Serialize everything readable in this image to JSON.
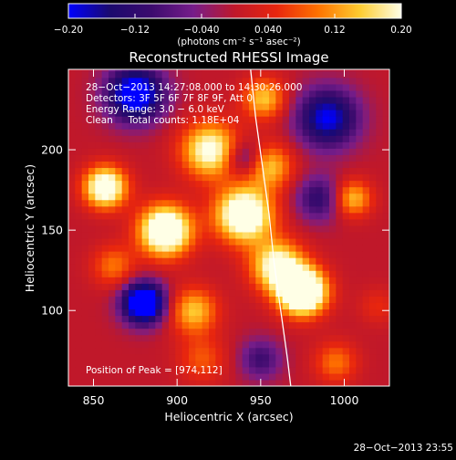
{
  "chart_data": {
    "type": "heatmap",
    "title": "Reconstructed RHESSI Image",
    "xlabel": "Heliocentric X (arcsec)",
    "ylabel": "Heliocentric Y (arcsec)",
    "xlim": [
      835,
      1027
    ],
    "ylim": [
      53,
      250
    ],
    "x_ticks": [
      850,
      900,
      950,
      1000
    ],
    "y_ticks": [
      100,
      150,
      200
    ],
    "colorbar": {
      "min": -0.2,
      "max": 0.2,
      "tick_values": [
        -0.2,
        -0.12,
        -0.04,
        0.04,
        0.12,
        0.2
      ],
      "tick_labels": [
        "−0.20",
        "−0.12",
        "−0.040",
        "0.040",
        "0.12",
        "0.20"
      ],
      "unit_label": "(photons cm⁻² s⁻¹ asec⁻²)",
      "stops": [
        "#0000ff",
        "#1b0a6e",
        "#3c0b6e",
        "#761d8a",
        "#c0182a",
        "#e8260e",
        "#ff7200",
        "#ffcc30",
        "#ffffe6"
      ]
    },
    "annotations": {
      "time_range": "28−Oct−2013 14:27:08.000 to 14:30:26.000",
      "detectors": "Detectors: 3F 5F 6F 7F 8F 9F, Att 0",
      "energy": "Energy Range: 3.0 − 6.0 keV",
      "clean": "Clean     Total counts: 1.18E+04",
      "peak": "Position of Peak = [974,112]"
    },
    "timestamp": "28−Oct−2013 23:55",
    "limb_curve": [
      [
        944,
        250
      ],
      [
        947,
        220
      ],
      [
        951,
        190
      ],
      [
        955,
        160
      ],
      [
        958,
        130
      ],
      [
        962,
        100
      ],
      [
        966,
        70
      ],
      [
        968,
        53
      ]
    ],
    "blobs": [
      [
        975,
        112,
        0.35,
        10
      ],
      [
        960,
        128,
        0.22,
        11
      ],
      [
        940,
        160,
        0.28,
        12
      ],
      [
        893,
        150,
        0.3,
        11
      ],
      [
        857,
        177,
        0.26,
        9
      ],
      [
        920,
        200,
        0.22,
        12
      ],
      [
        955,
        190,
        0.15,
        10
      ],
      [
        952,
        232,
        0.15,
        9
      ],
      [
        862,
        128,
        0.1,
        9
      ],
      [
        910,
        100,
        0.15,
        10
      ],
      [
        915,
        70,
        0.08,
        10
      ],
      [
        1005,
        170,
        0.15,
        8
      ],
      [
        995,
        68,
        0.1,
        9
      ],
      [
        1020,
        103,
        0.05,
        8
      ],
      [
        880,
        105,
        -0.3,
        9
      ],
      [
        875,
        235,
        -0.25,
        12
      ],
      [
        990,
        220,
        -0.2,
        13
      ],
      [
        940,
        195,
        -0.12,
        8
      ],
      [
        985,
        170,
        -0.12,
        10
      ],
      [
        950,
        70,
        -0.1,
        9
      ]
    ]
  }
}
